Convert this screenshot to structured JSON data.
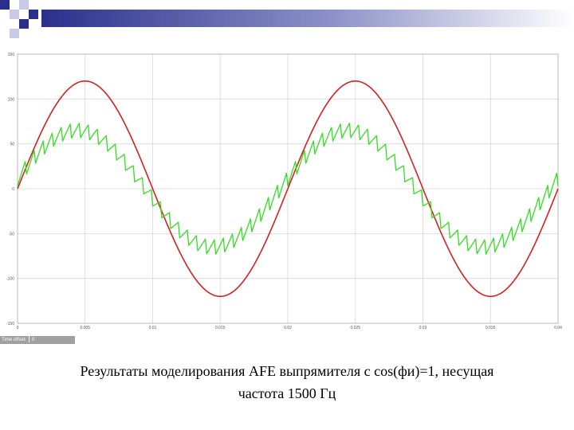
{
  "colors": {
    "ideal_curve": "#d42020",
    "measured_curve": "#33dd22",
    "grid": "#d8d8d8",
    "axis": "#b0b0b0",
    "decor_blue": "#2b2f8c",
    "decor_light": "#c9cbe6"
  },
  "status": {
    "label": "Time offset:",
    "value": "0"
  },
  "caption": {
    "line1": "Результаты моделирования AFE выпрямителя с cos(фи)=1, несущая",
    "line2": "частота 1500 Гц"
  },
  "chart_data": {
    "type": "line",
    "title": "",
    "xlabel": "",
    "ylabel": "",
    "xlim": [
      0,
      0.04
    ],
    "ylim": [
      -150,
      150
    ],
    "grid": true,
    "x_ticks": [
      0,
      0.005,
      0.01,
      0.015,
      0.02,
      0.025,
      0.03,
      0.035,
      0.04
    ],
    "x_tick_labels": [
      "0",
      "0.005",
      "0.01",
      "0.015",
      "0.02",
      "0.025",
      "0.03",
      "0.035",
      "0.04"
    ],
    "y_ticks": [
      150,
      100,
      50,
      0,
      -50,
      -100,
      -150
    ],
    "y_tick_labels": [
      "150",
      "100",
      "50",
      "0",
      "-50",
      "-100",
      "-150"
    ],
    "series": [
      {
        "style": "smooth",
        "amplitude": 120,
        "frequency_hz": 50,
        "sampled": {
          "x": [
            0,
            0.0025,
            0.005,
            0.0075,
            0.01,
            0.0125,
            0.015,
            0.0175,
            0.02,
            0.0225,
            0.025,
            0.0275,
            0.03,
            0.0325,
            0.035,
            0.0375,
            0.04
          ],
          "y": [
            0,
            84.9,
            120,
            84.9,
            0,
            -84.9,
            -120,
            -84.9,
            0,
            84.9,
            120,
            84.9,
            0,
            -84.9,
            -120,
            -84.9,
            0
          ]
        }
      },
      {
        "style": "pwm-ripple",
        "amplitude": 65,
        "frequency_hz": 50,
        "phase_lag_deg": 10,
        "ripple_hz": 1500,
        "ripple_amplitude": 8,
        "sampled": {
          "x": [
            0,
            0.0025,
            0.005,
            0.0075,
            0.01,
            0.0125,
            0.015,
            0.0175,
            0.02,
            0.0225,
            0.025,
            0.0275,
            0.03,
            0.0325,
            0.035,
            0.0375,
            0.04
          ],
          "y": [
            8,
            40,
            66,
            55,
            0,
            -40,
            -62,
            -52,
            0,
            40,
            66,
            55,
            0,
            -40,
            -62,
            -52,
            0
          ]
        }
      }
    ]
  }
}
